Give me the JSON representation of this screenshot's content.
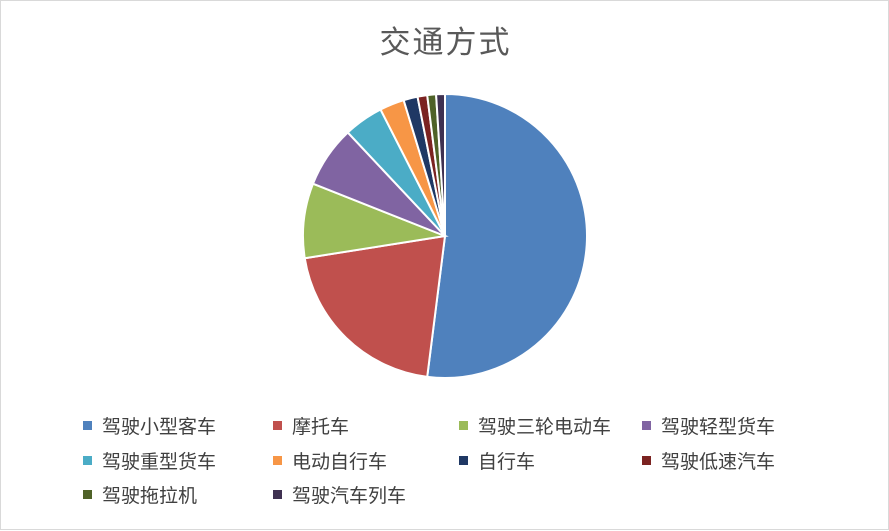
{
  "chart_data": {
    "type": "pie",
    "title": "交通方式",
    "legend_position": "bottom",
    "categories": [
      "驾驶小型客车",
      "摩托车",
      "驾驶三轮电动车",
      "驾驶轻型货车",
      "驾驶重型货车",
      "电动自行车",
      "自行车",
      "驾驶低速汽车",
      "驾驶拖拉机",
      "驾驶汽车列车"
    ],
    "values": [
      52.0,
      20.5,
      8.5,
      7.0,
      4.5,
      2.8,
      1.6,
      1.1,
      1.0,
      1.0
    ],
    "colors": [
      "#4f81bd",
      "#c0504d",
      "#9bbb59",
      "#8064a2",
      "#4bacc6",
      "#f79646",
      "#1f3864",
      "#7b2321",
      "#4f6228",
      "#3f3151"
    ]
  }
}
